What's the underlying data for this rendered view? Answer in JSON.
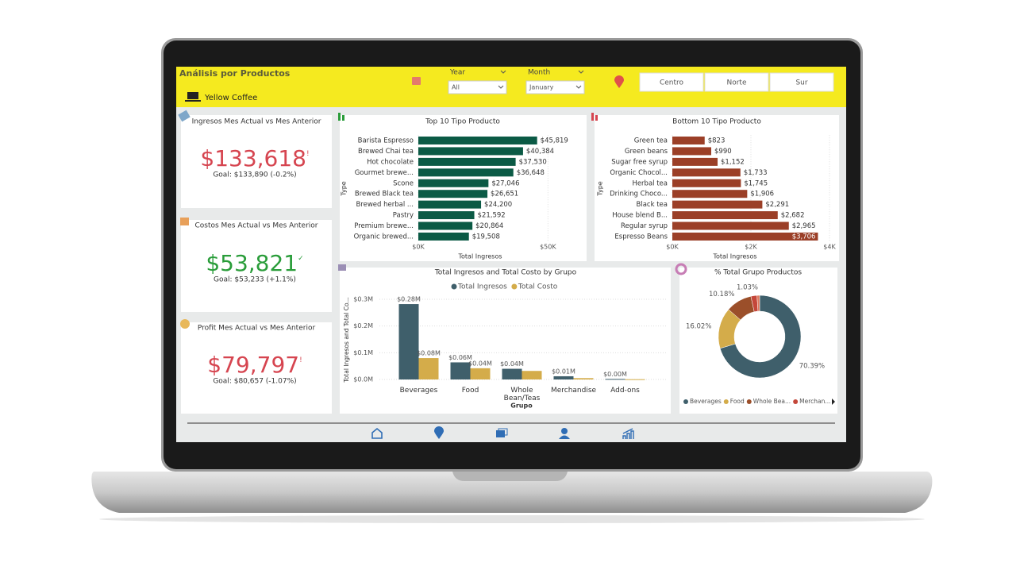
{
  "header": {
    "title": "Análisis por Productos",
    "brand": "Yellow Coffee"
  },
  "filters": [
    {
      "label": "Year",
      "value": "All"
    },
    {
      "label": "Month",
      "value": "January"
    }
  ],
  "regions": [
    "Centro",
    "Norte",
    "Sur"
  ],
  "kpis": [
    {
      "title": "Ingresos Mes Actual vs Mes Anterior",
      "value": "$133,618",
      "indicator": "!",
      "goal": "Goal: $133,890 (-0.2%)",
      "color": "#d64550"
    },
    {
      "title": "Costos Mes Actual vs Mes Anterior",
      "value": "$53,821",
      "indicator": "✓",
      "goal": "Goal: $53,233 (+1.1%)",
      "color": "#2a9d3a"
    },
    {
      "title": "Profit Mes Actual vs Mes Anterior",
      "value": "$79,797",
      "indicator": "!",
      "goal": "Goal: $80,657 (-1.07%)",
      "color": "#d64550"
    }
  ],
  "chart_data": [
    {
      "type": "barh",
      "title": "Top 10 Tipo Producto",
      "xlabel": "Total Ingresos",
      "ylabel": "Type",
      "color": "#0b5a45",
      "categories": [
        "Barista Espresso",
        "Brewed Chai tea",
        "Hot chocolate",
        "Gourmet brewe...",
        "Scone",
        "Brewed Black tea",
        "Brewed herbal ...",
        "Pastry",
        "Premium brewe...",
        "Organic brewed..."
      ],
      "values": [
        45819,
        40384,
        37530,
        36648,
        27046,
        26651,
        24200,
        21592,
        20864,
        19508
      ],
      "value_labels": [
        "$45,819",
        "$40,384",
        "$37,530",
        "$36,648",
        "$27,046",
        "$26,651",
        "$24,200",
        "$21,592",
        "$20,864",
        "$19,508"
      ],
      "xlim": [
        0,
        60000
      ],
      "xticks": [
        {
          "value": 0,
          "label": "$0K"
        },
        {
          "value": 50000,
          "label": "$50K"
        }
      ],
      "grid": true
    },
    {
      "type": "barh",
      "title": "Bottom 10 Tipo Producto",
      "xlabel": "Total Ingresos",
      "ylabel": "Type",
      "color": "#9b3f27",
      "categories": [
        "Green tea",
        "Green beans",
        "Sugar free syrup",
        "Organic Chocol...",
        "Herbal tea",
        "Drinking Choco...",
        "Black tea",
        "House blend B...",
        "Regular syrup",
        "Espresso Beans"
      ],
      "values": [
        823,
        990,
        1152,
        1733,
        1745,
        1906,
        2291,
        2682,
        2965,
        3706
      ],
      "value_labels": [
        "$823",
        "$990",
        "$1,152",
        "$1,733",
        "$1,745",
        "$1,906",
        "$2,291",
        "$2,682",
        "$2,965",
        "$3,706"
      ],
      "xlim": [
        0,
        4000
      ],
      "xticks": [
        {
          "value": 0,
          "label": "$0K"
        },
        {
          "value": 2000,
          "label": "$2K"
        },
        {
          "value": 4000,
          "label": "$4K"
        }
      ],
      "grid": true
    },
    {
      "type": "bar",
      "title": "Total Ingresos and Total Costo by Grupo",
      "xlabel": "Grupo",
      "ylabel": "Total Ingresos and Total Co...",
      "categories": [
        "Beverages",
        "Food",
        "Whole Bean/Teas",
        "Merchandise",
        "Add-ons"
      ],
      "series": [
        {
          "name": "Total Ingresos",
          "color": "#3f5f6b",
          "values": [
            282000,
            64000,
            40000,
            12000,
            2000
          ],
          "value_labels": [
            "$0.28M",
            "$0.06M",
            "$0.04M",
            "$0.01M",
            "$0.00M"
          ]
        },
        {
          "name": "Total Costo",
          "color": "#d4ac4a",
          "values": [
            80000,
            42000,
            32000,
            5000,
            1000
          ],
          "value_labels": [
            "$0.08M",
            "$0.04M",
            null,
            null,
            null
          ]
        }
      ],
      "ylim": [
        0,
        300000
      ],
      "yticks": [
        {
          "value": 0,
          "label": "$0.0M"
        },
        {
          "value": 100000,
          "label": "$0.1M"
        },
        {
          "value": 200000,
          "label": "$0.2M"
        },
        {
          "value": 300000,
          "label": "$0.3M"
        }
      ],
      "grid": true
    },
    {
      "type": "donut",
      "title": "% Total Grupo Productos",
      "categories": [
        "Beverages",
        "Food",
        "Whole Bea...",
        "Merchan...",
        null
      ],
      "values": [
        70.39,
        16.02,
        10.18,
        2.38,
        1.03
      ],
      "value_labels": [
        "70.39%",
        "16.02%",
        "10.18%",
        null,
        "1.03%"
      ],
      "colors": [
        "#3f5f6b",
        "#d4ac4a",
        "#9b4f2a",
        "#c4473a",
        "#e07a5f"
      ]
    }
  ]
}
